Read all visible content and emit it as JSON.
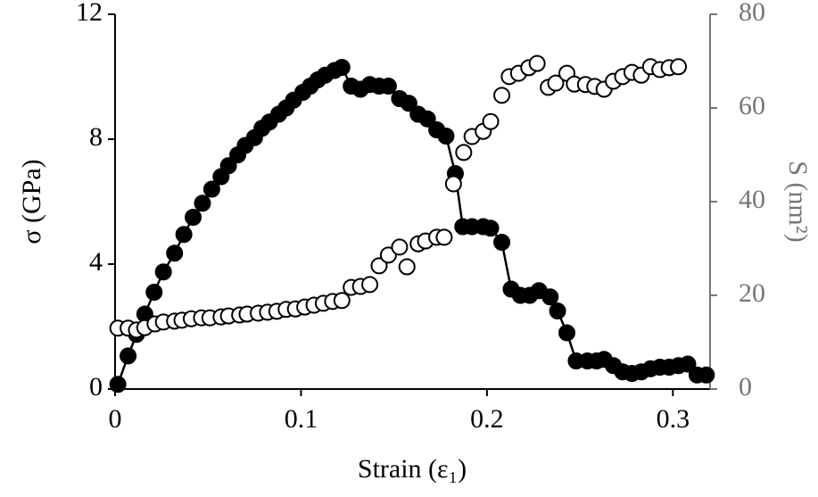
{
  "chart_data": {
    "type": "line",
    "xlabel": "Strain (ε₁)",
    "ylabel": "σ (GPa)",
    "y2label": "S (nm²)",
    "xlim": [
      0,
      0.32
    ],
    "xticks": [
      0,
      0.1,
      0.2,
      0.3
    ],
    "ylim": [
      0,
      12
    ],
    "yticks": [
      0,
      4,
      8,
      12
    ],
    "y2lim": [
      0,
      80
    ],
    "y2ticks": [
      0,
      20,
      40,
      60,
      80
    ],
    "series": [
      {
        "color": "#000000",
        "marker": "filled",
        "line": true,
        "x": [
          0.0015,
          0.007,
          0.0115,
          0.016,
          0.021,
          0.026,
          0.032,
          0.037,
          0.042,
          0.047,
          0.052,
          0.057,
          0.061,
          0.066,
          0.07,
          0.075,
          0.079,
          0.083,
          0.088,
          0.092,
          0.096,
          0.101,
          0.105,
          0.109,
          0.113,
          0.118,
          0.122,
          0.127,
          0.132,
          0.137,
          0.142,
          0.147,
          0.153,
          0.158,
          0.163,
          0.168,
          0.173,
          0.178,
          0.183,
          0.187,
          0.192,
          0.198,
          0.202,
          0.208,
          0.213,
          0.218,
          0.223,
          0.228,
          0.234,
          0.238,
          0.243,
          0.248,
          0.254,
          0.259,
          0.263,
          0.268,
          0.273,
          0.278,
          0.283,
          0.288,
          0.293,
          0.298,
          0.303,
          0.308,
          0.313,
          0.318
        ],
        "values": [
          0.15,
          1.06,
          1.75,
          2.4,
          3.1,
          3.75,
          4.35,
          4.95,
          5.5,
          5.95,
          6.4,
          6.8,
          7.15,
          7.5,
          7.8,
          8.05,
          8.35,
          8.55,
          8.8,
          9.0,
          9.25,
          9.5,
          9.7,
          9.9,
          10.05,
          10.2,
          10.3,
          9.7,
          9.6,
          9.75,
          9.7,
          9.7,
          9.3,
          9.15,
          8.8,
          8.65,
          8.3,
          8.1,
          6.9,
          5.2,
          5.2,
          5.2,
          5.15,
          4.7,
          3.2,
          3.0,
          3.0,
          3.15,
          2.95,
          2.5,
          1.8,
          0.9,
          0.9,
          0.9,
          0.95,
          0.75,
          0.55,
          0.5,
          0.55,
          0.65,
          0.7,
          0.7,
          0.75,
          0.8,
          0.45,
          0.45
        ]
      },
      {
        "color": "#000000",
        "marker": "open",
        "line": false,
        "axis": "y2",
        "x": [
          0.0015,
          0.007,
          0.0115,
          0.016,
          0.0215,
          0.026,
          0.032,
          0.036,
          0.041,
          0.0465,
          0.051,
          0.057,
          0.061,
          0.067,
          0.071,
          0.077,
          0.082,
          0.087,
          0.092,
          0.097,
          0.102,
          0.107,
          0.112,
          0.117,
          0.122,
          0.127,
          0.132,
          0.137,
          0.142,
          0.147,
          0.153,
          0.157,
          0.163,
          0.167,
          0.173,
          0.177,
          0.182,
          0.1875,
          0.192,
          0.198,
          0.202,
          0.208,
          0.212,
          0.217,
          0.2225,
          0.227,
          0.233,
          0.237,
          0.243,
          0.247,
          0.253,
          0.258,
          0.263,
          0.268,
          0.273,
          0.278,
          0.283,
          0.288,
          0.293,
          0.298,
          0.303
        ],
        "values": [
          13,
          13,
          12.6,
          13.1,
          13.9,
          14.3,
          14.5,
          14.7,
          15,
          15.2,
          15.2,
          15.4,
          15.6,
          15.8,
          16,
          16.2,
          16.4,
          16.6,
          17,
          17.1,
          17.5,
          17.9,
          18.3,
          18.7,
          18.9,
          21.7,
          21.9,
          22.3,
          26.3,
          28.6,
          30.3,
          26.1,
          31,
          31.6,
          32.4,
          32.4,
          43.8,
          50.5,
          53.9,
          55,
          57.1,
          62.7,
          66.7,
          67.4,
          68.6,
          69.5,
          64.4,
          65.3,
          67.4,
          65.1,
          65,
          64.6,
          64,
          65.7,
          66.7,
          67.6,
          67,
          68.8,
          68.2,
          68.6,
          68.8
        ]
      }
    ],
    "axis_colors": {
      "x": "#000000",
      "y": "#000000",
      "y2": "#767676"
    }
  }
}
